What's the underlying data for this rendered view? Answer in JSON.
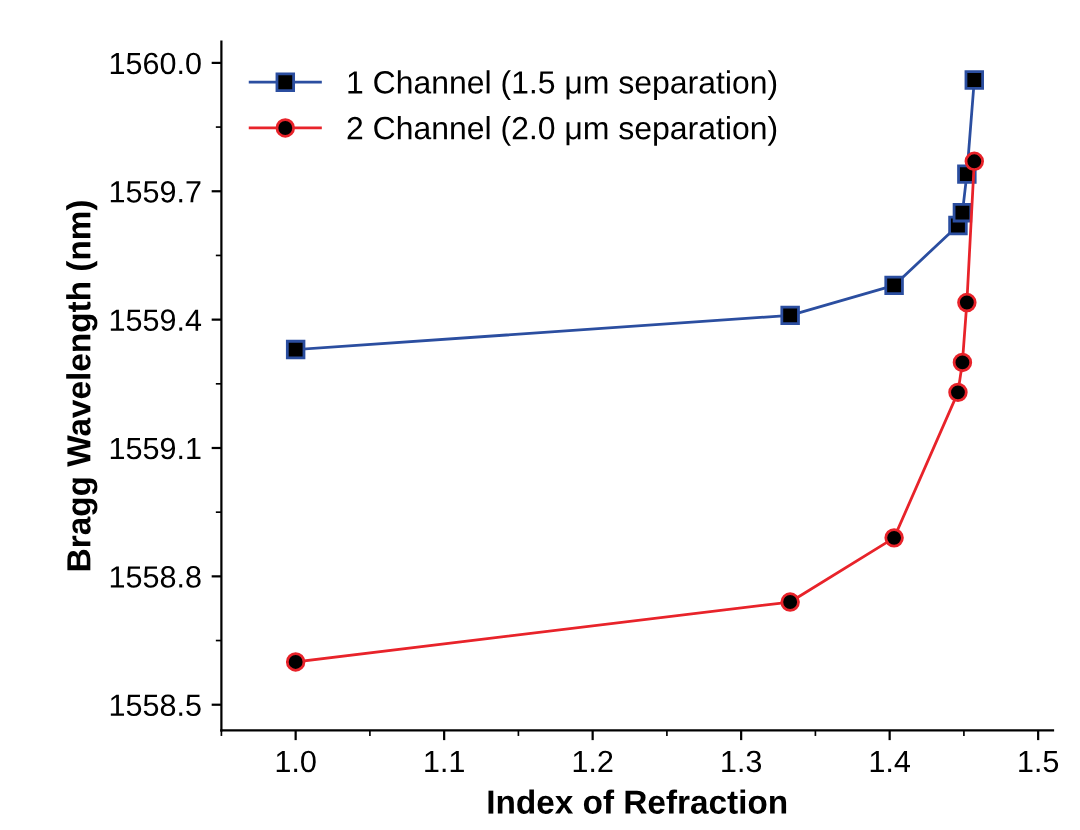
{
  "chart_data": {
    "type": "line",
    "xlabel": "Index of Refraction",
    "ylabel": "Bragg Wavelength (nm)",
    "xlim": [
      0.95,
      1.51
    ],
    "xticks": [
      {
        "value": 1.0,
        "label": "1.0"
      },
      1.1,
      1.2,
      1.3,
      1.4,
      1.5
    ],
    "ylim": [
      1558.44,
      1560.05
    ],
    "yticks": [
      {
        "value": 1558.5,
        "label": "1558.5"
      },
      1558.8,
      1559.1,
      1559.4,
      1559.7,
      {
        "value": 1560.0,
        "label": "1560.0"
      }
    ],
    "grid": false,
    "legend": "top left",
    "line_style": "solid",
    "series": [
      {
        "name": "1 Channel (1.5 μm separation)",
        "color": "#2b4ea0",
        "marker": "square",
        "x": [
          1.0,
          1.333,
          1.403,
          1.446,
          1.449,
          1.452,
          1.457
        ],
        "values": [
          1559.33,
          1559.41,
          1559.48,
          1559.62,
          1559.65,
          1559.74,
          1559.96
        ]
      },
      {
        "name": "2 Channel (2.0 μm separation)",
        "color": "#e8232a",
        "marker": "circle",
        "x": [
          1.0,
          1.333,
          1.403,
          1.446,
          1.449,
          1.452,
          1.457
        ],
        "values": [
          1558.6,
          1558.74,
          1558.89,
          1559.23,
          1559.3,
          1559.44,
          1559.77
        ]
      }
    ]
  }
}
